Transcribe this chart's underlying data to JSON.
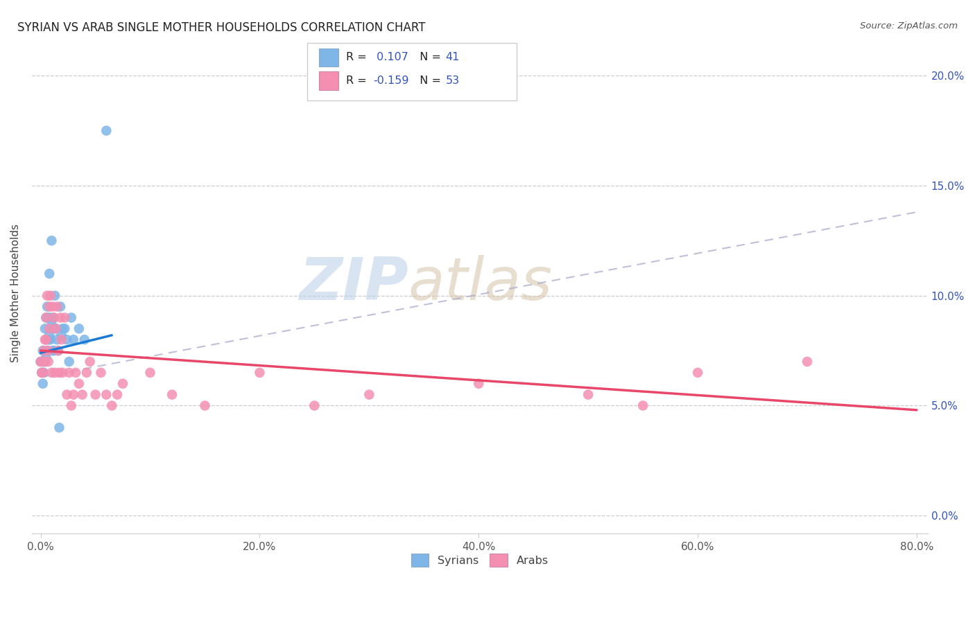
{
  "title": "SYRIAN VS ARAB SINGLE MOTHER HOUSEHOLDS CORRELATION CHART",
  "source": "Source: ZipAtlas.com",
  "ylabel": "Single Mother Households",
  "xlim": [
    0.0,
    0.8
  ],
  "ylim": [
    0.0,
    0.21
  ],
  "syrian_color": "#7EB6E8",
  "arab_color": "#F48FB1",
  "syrian_r": 0.107,
  "syrian_n": 41,
  "arab_r": -0.159,
  "arab_n": 53,
  "watermark_zip": "ZIP",
  "watermark_atlas": "atlas",
  "syrian_points_x": [
    0.0,
    0.001,
    0.002,
    0.002,
    0.003,
    0.003,
    0.004,
    0.004,
    0.005,
    0.005,
    0.005,
    0.006,
    0.006,
    0.007,
    0.007,
    0.008,
    0.008,
    0.009,
    0.009,
    0.01,
    0.01,
    0.011,
    0.011,
    0.012,
    0.012,
    0.013,
    0.014,
    0.015,
    0.016,
    0.017,
    0.018,
    0.019,
    0.02,
    0.022,
    0.024,
    0.026,
    0.028,
    0.03,
    0.035,
    0.04,
    0.06
  ],
  "syrian_points_y": [
    0.07,
    0.065,
    0.075,
    0.06,
    0.07,
    0.065,
    0.085,
    0.07,
    0.09,
    0.08,
    0.072,
    0.095,
    0.075,
    0.09,
    0.08,
    0.11,
    0.082,
    0.09,
    0.08,
    0.125,
    0.088,
    0.085,
    0.075,
    0.09,
    0.075,
    0.1,
    0.085,
    0.08,
    0.075,
    0.04,
    0.095,
    0.082,
    0.085,
    0.085,
    0.08,
    0.07,
    0.09,
    0.08,
    0.085,
    0.08,
    0.175
  ],
  "arab_points_x": [
    0.0,
    0.001,
    0.002,
    0.002,
    0.003,
    0.004,
    0.004,
    0.005,
    0.005,
    0.006,
    0.007,
    0.007,
    0.008,
    0.008,
    0.009,
    0.01,
    0.011,
    0.012,
    0.013,
    0.014,
    0.015,
    0.016,
    0.017,
    0.018,
    0.019,
    0.02,
    0.022,
    0.024,
    0.026,
    0.028,
    0.03,
    0.032,
    0.035,
    0.038,
    0.042,
    0.045,
    0.05,
    0.055,
    0.06,
    0.065,
    0.07,
    0.075,
    0.1,
    0.12,
    0.15,
    0.2,
    0.25,
    0.3,
    0.4,
    0.5,
    0.55,
    0.6,
    0.7
  ],
  "arab_points_y": [
    0.07,
    0.065,
    0.07,
    0.065,
    0.075,
    0.08,
    0.07,
    0.09,
    0.08,
    0.1,
    0.075,
    0.07,
    0.095,
    0.085,
    0.1,
    0.065,
    0.095,
    0.09,
    0.065,
    0.085,
    0.095,
    0.075,
    0.065,
    0.09,
    0.08,
    0.065,
    0.09,
    0.055,
    0.065,
    0.05,
    0.055,
    0.065,
    0.06,
    0.055,
    0.065,
    0.07,
    0.055,
    0.065,
    0.055,
    0.05,
    0.055,
    0.06,
    0.065,
    0.055,
    0.05,
    0.065,
    0.05,
    0.055,
    0.06,
    0.055,
    0.05,
    0.065,
    0.07
  ],
  "background_color": "#ffffff",
  "grid_color": "#c8c8c8",
  "dash_line_x": [
    0.0,
    0.8
  ],
  "dash_line_y": [
    0.063,
    0.138
  ],
  "syrian_trend_x": [
    0.0,
    0.065
  ],
  "syrian_trend_y_start": 0.074,
  "syrian_trend_y_end": 0.082,
  "arab_trend_x": [
    0.0,
    0.8
  ],
  "arab_trend_y_start": 0.075,
  "arab_trend_y_end": 0.048
}
